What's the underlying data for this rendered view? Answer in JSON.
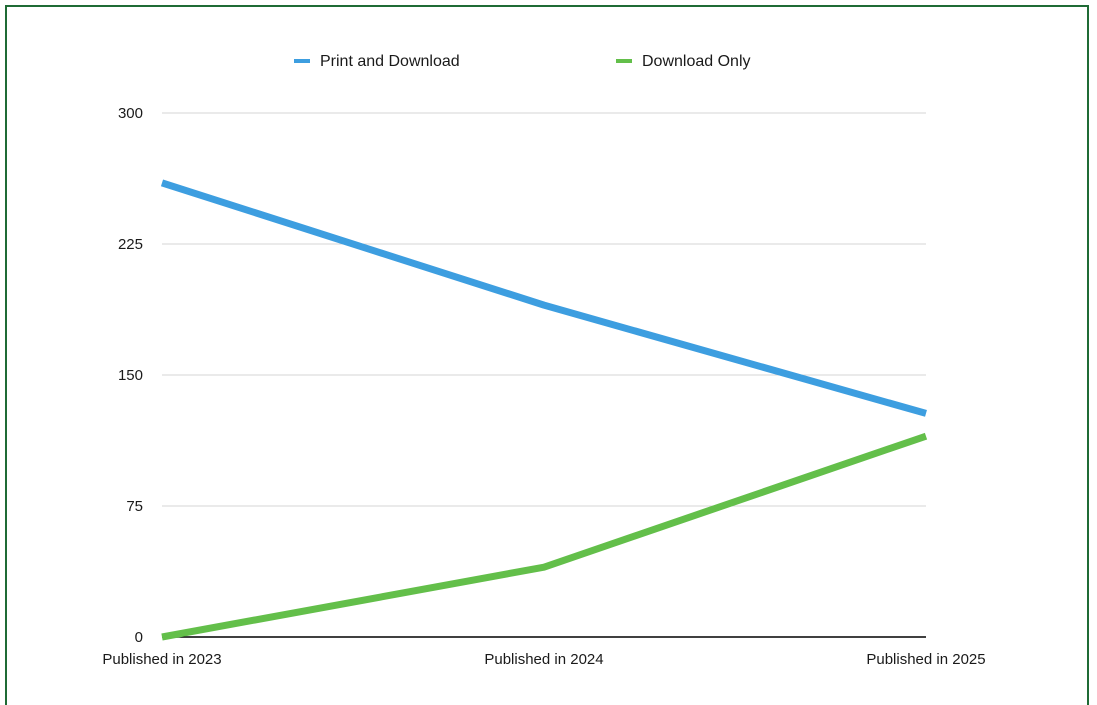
{
  "chart_data": {
    "type": "line",
    "categories": [
      "Published in 2023",
      "Published in 2024",
      "Published in 2025"
    ],
    "series": [
      {
        "name": "Print and Download",
        "values": [
          260,
          190,
          128
        ],
        "color": "#3d9ee0"
      },
      {
        "name": "Download Only",
        "values": [
          0,
          40,
          115
        ],
        "color": "#63bf4a"
      }
    ],
    "yticks": [
      0,
      75,
      150,
      225,
      300
    ],
    "ylim": [
      0,
      300
    ],
    "grid": true,
    "legend_position": "top-center",
    "colors": {
      "border": "#1f6b35",
      "grid": "#d6d6d6",
      "axis": "#000000"
    }
  }
}
